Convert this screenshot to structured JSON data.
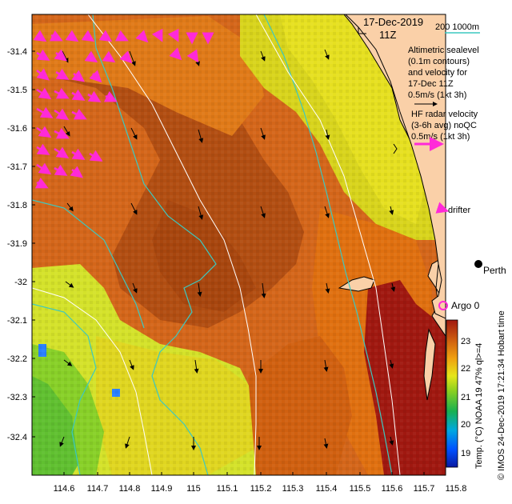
{
  "date_label": "17-Dec-2019",
  "time_label": "11Z",
  "bathy_legend": "200   1000m",
  "altimetry_legend": [
    "Altimetric sealevel",
    "(0.1m contours)",
    "and velocity for",
    "17-Dec 11Z"
  ],
  "altimetry_scale": "0.5m/s (1kt 3h)",
  "hf_legend": [
    "HF radar velocity",
    "(3-6h avg) noQC"
  ],
  "hf_scale": "0.5m/s (1kt 3h)",
  "drifter_label": "drifter",
  "city_label": "Perth",
  "city_label_suffix": "Hobart time",
  "argo_label": "Argo 0",
  "colorbar": {
    "label": "Temp. (°C) NOAA 19 47% ql>=4",
    "ticks": [
      "23",
      "22",
      "21",
      "20",
      "19"
    ],
    "min": 18.5,
    "max": 23.6
  },
  "credit": "© IMOS 24-Dec-2019 17:21:34 Hobart time",
  "axes": {
    "x_ticks": [
      "114.6",
      "114.7",
      "114.8",
      "114.9",
      "115",
      "115.1",
      "115.2",
      "115.3",
      "115.4",
      "115.5",
      "115.6",
      "115.7",
      "115.8"
    ],
    "y_ticks": [
      "-31.4",
      "-31.5",
      "-31.6",
      "-31.7",
      "-31.8",
      "-31.9",
      "-32",
      "-32.1",
      "-32.2",
      "-32.3",
      "-32.4"
    ]
  },
  "colors": {
    "land": "#fad0a8",
    "warm_core": "#b24e12",
    "coastal_warm": "#e07010",
    "cool_water": "#d4e22a",
    "bathymetry": "#3cc8c0",
    "hf_arrow": "#ff2ad8",
    "argo": "#ff2ad8"
  }
}
